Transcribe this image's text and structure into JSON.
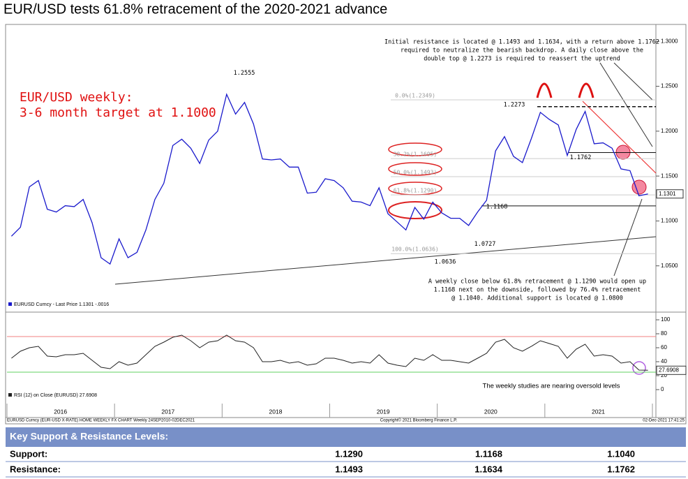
{
  "title": "EUR/USD tests 61.8% retracement of the 2020-2021 advance",
  "chart_data": [
    {
      "type": "line",
      "color": "#1a1acc",
      "values": [
        1.083,
        1.093,
        1.138,
        1.145,
        1.113,
        1.11,
        1.117,
        1.116,
        1.124,
        1.098,
        1.059,
        1.052,
        1.08,
        1.059,
        1.065,
        1.09,
        1.124,
        1.142,
        1.184,
        1.191,
        1.181,
        1.164,
        1.19,
        1.2,
        1.241,
        1.219,
        1.232,
        1.208,
        1.169,
        1.168,
        1.169,
        1.16,
        1.16,
        1.131,
        1.132,
        1.147,
        1.145,
        1.137,
        1.122,
        1.121,
        1.117,
        1.137,
        1.108,
        1.099,
        1.09,
        1.115,
        1.102,
        1.121,
        1.109,
        1.103,
        1.103,
        1.095,
        1.11,
        1.123,
        1.178,
        1.194,
        1.172,
        1.165,
        1.192,
        1.221,
        1.213,
        1.207,
        1.173,
        1.202,
        1.222,
        1.186,
        1.187,
        1.181,
        1.158,
        1.156,
        1.128,
        1.1301
      ],
      "ylim": [
        1.0,
        1.315
      ],
      "yticks": [
        {
          "value": 1.3,
          "label": "1.3000"
        },
        {
          "value": 1.25,
          "label": "1.2500"
        },
        {
          "value": 1.2,
          "label": "1.2000"
        },
        {
          "value": 1.15,
          "label": "1.1500"
        },
        {
          "value": 1.1,
          "label": "1.1000"
        },
        {
          "value": 1.05,
          "label": "1.0500"
        }
      ],
      "last_value": 1.1301,
      "legend_text": "EURUSD Curncy - Last Price 1.1301 -.0016",
      "fib_levels": [
        {
          "value": 1.2349,
          "label": "0.0%(1.2349)"
        },
        {
          "value": 1.1695,
          "label": "38.2%(1.1695)"
        },
        {
          "value": 1.1493,
          "label": "50.0%(1.1493)"
        },
        {
          "value": 1.129,
          "label": "61.8%(1.1290)"
        },
        {
          "value": 1.0636,
          "label": "100.0%(1.0636)"
        }
      ],
      "price_labels": [
        1.2555,
        1.2273,
        1.1762,
        1.1168,
        1.0727,
        1.0636
      ],
      "target_text": [
        "EUR/USD weekly:",
        "3-6 month target at 1.1000"
      ],
      "resistance_note": [
        "Initial resistance is located @ 1.1493 and 1.1634, with a return above 1.1762",
        "required to neutralize the bearish backdrop. A daily close above the",
        "double top @ 1.2273 is required to reassert the uptrend"
      ],
      "support_note": [
        "A weekly close below 61.8% retracement @ 1.1290 would open up",
        "1.1168 next on the downside, followed by 76.4% retracement",
        "@ 1.1040. Additional support is located @ 1.0800"
      ]
    },
    {
      "type": "line",
      "color": "#222222",
      "categories": [
        null,
        null,
        null,
        null,
        null,
        "2016",
        null,
        null,
        null,
        null,
        null,
        null,
        null,
        null,
        null,
        null,
        null,
        "2017",
        null,
        null,
        null,
        null,
        null,
        null,
        null,
        null,
        null,
        null,
        null,
        "2018",
        null,
        null,
        null,
        null,
        null,
        null,
        null,
        null,
        null,
        null,
        null,
        "2019",
        null,
        null,
        null,
        null,
        null,
        null,
        null,
        null,
        null,
        null,
        null,
        "2020",
        null,
        null,
        null,
        null,
        null,
        null,
        null,
        null,
        null,
        null,
        null,
        "2021",
        null,
        null,
        null,
        null,
        null,
        null
      ],
      "values": [
        45,
        55,
        60,
        62,
        48,
        47,
        50,
        50,
        52,
        42,
        32,
        30,
        40,
        35,
        38,
        50,
        62,
        68,
        75,
        78,
        70,
        60,
        68,
        70,
        78,
        70,
        68,
        60,
        40,
        40,
        42,
        38,
        40,
        35,
        37,
        45,
        45,
        42,
        38,
        40,
        38,
        50,
        38,
        35,
        33,
        45,
        42,
        50,
        42,
        42,
        40,
        38,
        45,
        52,
        68,
        72,
        60,
        55,
        62,
        70,
        66,
        62,
        45,
        58,
        65,
        48,
        50,
        48,
        38,
        40,
        28,
        27.6908
      ],
      "ylim": [
        -12,
        108
      ],
      "yticks": [
        100,
        80,
        60,
        40,
        20,
        0
      ],
      "bands": [
        76,
        25
      ],
      "last_value": 27.6908,
      "legend_text": "RSI (12) on Close (EURUSD) 27.6908",
      "note": "The weekly studies are nearing oversold levels"
    }
  ],
  "footer": {
    "left": "EURUSD Curncy (EUR-USD X-RATE) HOME WEEKLY FX CHART  Weekly 24SEP2010-02DEC2021",
    "center": "Copyright© 2021 Bloomberg Finance L.P.",
    "right": "02-Dec-2021 17:41:25"
  },
  "table": {
    "title": "Key Support & Resistance Levels:",
    "rows": [
      [
        "Support:",
        "1.1290",
        "1.1168",
        "1.1040"
      ],
      [
        "Resistance:",
        "1.1493",
        "1.1634",
        "1.1762"
      ]
    ]
  }
}
